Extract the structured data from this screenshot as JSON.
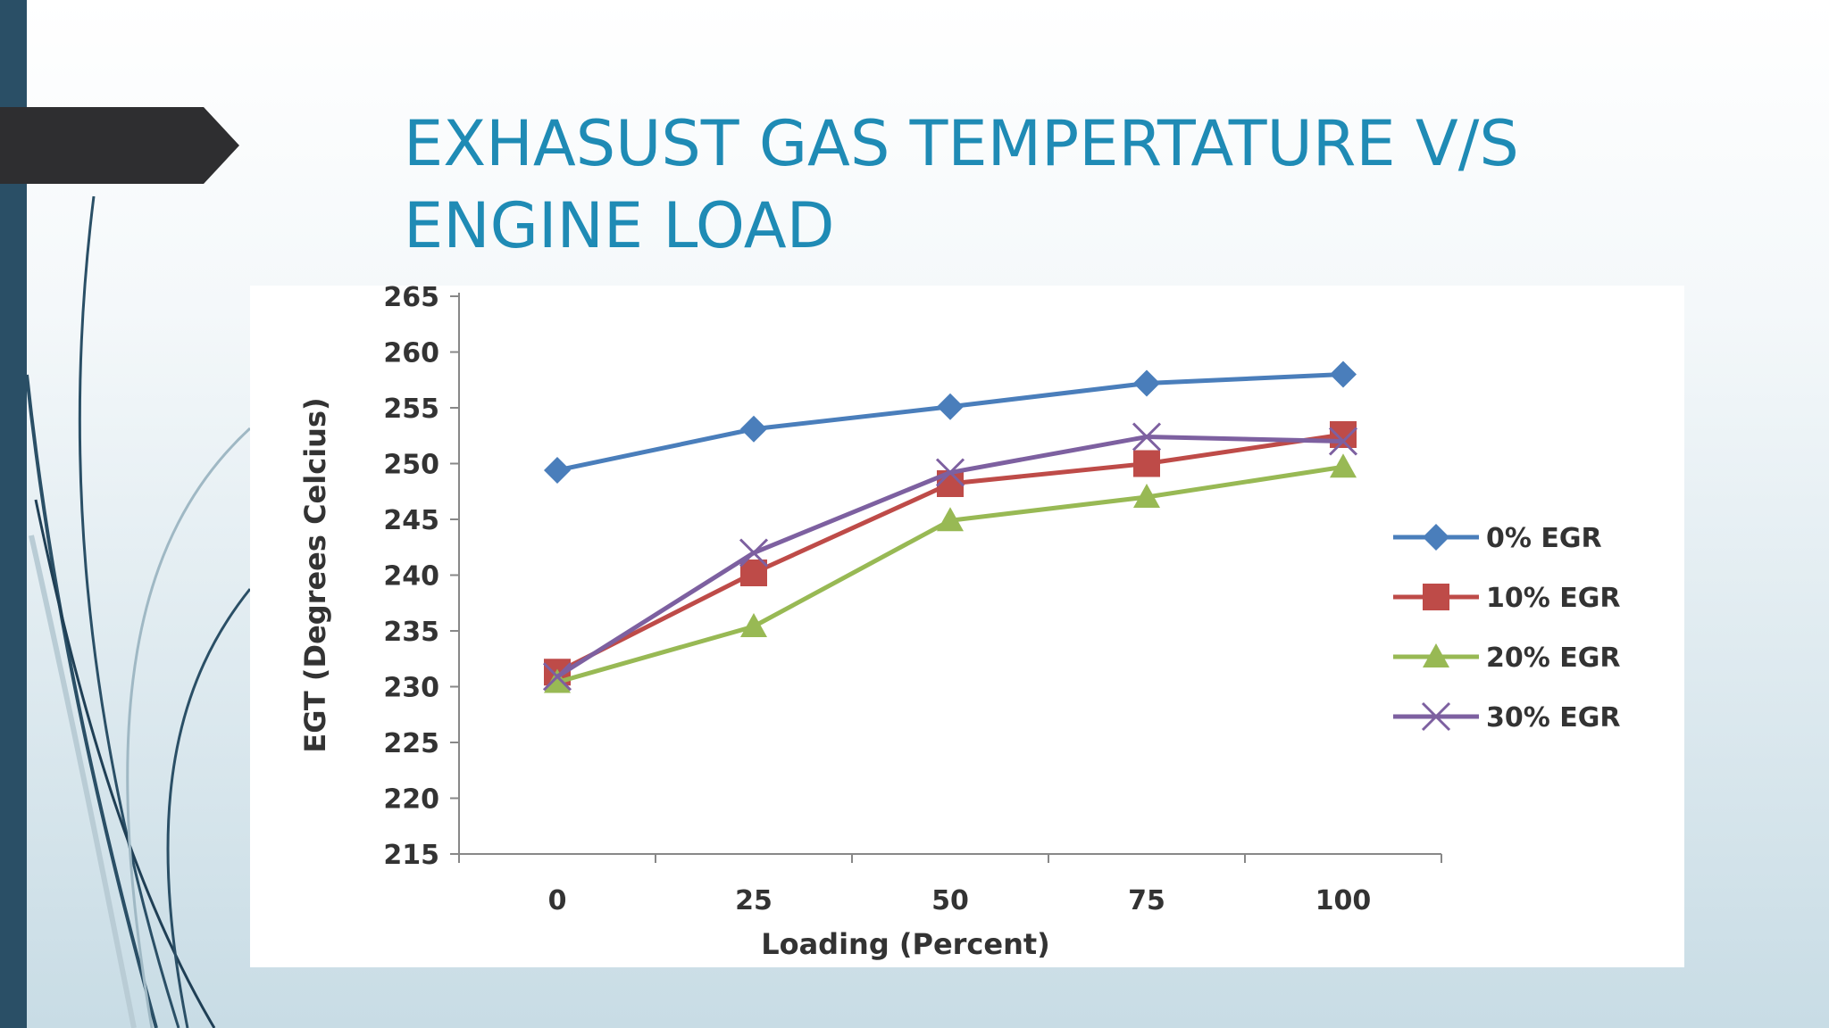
{
  "slide": {
    "title_line1": "EXHASUST GAS TEMPERTATURE V/S",
    "title_line2": "ENGINE LOAD"
  },
  "chart_data": {
    "type": "line",
    "title": "",
    "xlabel": "Loading (Percent)",
    "ylabel": "EGT  (Degrees Celcius)",
    "categories": [
      "0",
      "25",
      "50",
      "75",
      "100"
    ],
    "x": [
      0,
      25,
      50,
      75,
      100
    ],
    "ylim": [
      215,
      265
    ],
    "yticks": [
      215,
      220,
      225,
      230,
      235,
      240,
      245,
      250,
      255,
      260,
      265
    ],
    "grid": false,
    "legend_position": "right",
    "series": [
      {
        "name": "0% EGR",
        "values": [
          249.4,
          253.1,
          255.1,
          257.2,
          258.0
        ],
        "color": "#4a7ebb",
        "marker": "diamond"
      },
      {
        "name": "10% EGR",
        "values": [
          231.3,
          240.2,
          248.2,
          250.0,
          252.6
        ],
        "color": "#be4b48",
        "marker": "square"
      },
      {
        "name": "20% EGR",
        "values": [
          230.4,
          235.4,
          244.9,
          247.0,
          249.7
        ],
        "color": "#98b954",
        "marker": "triangle"
      },
      {
        "name": "30% EGR",
        "values": [
          230.9,
          242.0,
          249.2,
          252.4,
          252.0
        ],
        "color": "#7d60a0",
        "marker": "x"
      }
    ]
  }
}
